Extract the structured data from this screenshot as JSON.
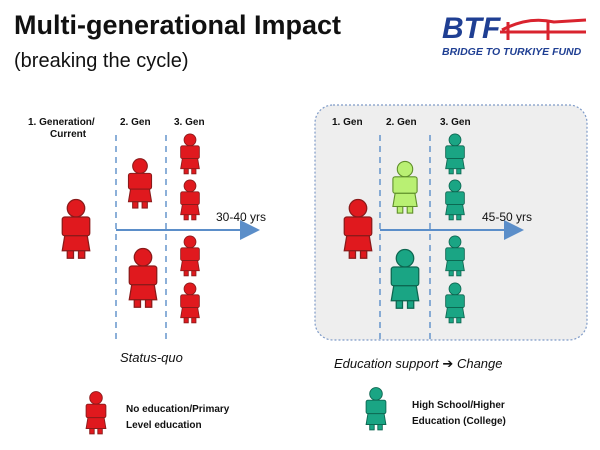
{
  "header": {
    "title": "Multi-generational Impact",
    "subtitle": "(breaking the cycle)",
    "logo_letters": "BTF",
    "logo_tagline": "BRIDGE TO TURKIYE FUND"
  },
  "status_quo": {
    "gen1_label": "1.   Generation/",
    "gen1_label_line2": "Current",
    "gen2_label": "2. Gen",
    "gen3_label": "3. Gen",
    "timespan": "30-40 yrs",
    "caption": "Status-quo"
  },
  "change": {
    "gen1_label": "1. Gen",
    "gen2_label": "2. Gen",
    "gen3_label": "3. Gen",
    "timespan": "45-50 yrs",
    "caption_part1": "Education support",
    "caption_arrow": "➔",
    "caption_part2": "Change"
  },
  "legend": {
    "red_line1": "No education/Primary",
    "red_line2": "Level education",
    "green_line1": "High School/Higher",
    "green_line2": "Education (College)"
  },
  "colors": {
    "red": "#e0191e",
    "red_dark": "#8a1a1a",
    "green": "#1aa584",
    "green_dark": "#0d6650",
    "light_green": "#b9f073",
    "arrow_blue": "#5b8ec9",
    "brand_blue": "#1f3f93",
    "brand_red": "#d9232e"
  }
}
